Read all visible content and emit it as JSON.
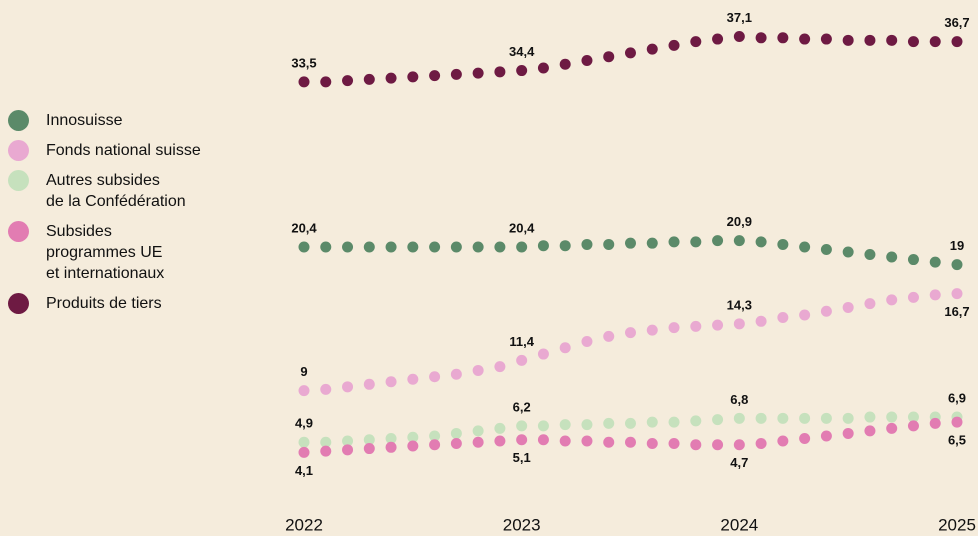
{
  "chart_data": {
    "type": "dot-line",
    "x": [
      2022,
      2022.1,
      2022.2,
      2022.3,
      2022.4,
      2022.5,
      2022.6,
      2022.7,
      2022.8,
      2022.9,
      2023,
      2023.1,
      2023.2,
      2023.3,
      2023.4,
      2023.5,
      2023.6,
      2023.7,
      2023.8,
      2023.9,
      2024,
      2024.1,
      2024.2,
      2024.3,
      2024.4,
      2024.5,
      2024.6,
      2024.7,
      2024.8,
      2024.9,
      2025
    ],
    "xlim": [
      2022,
      2025
    ],
    "xticks": [
      2022,
      2023,
      2024,
      2025
    ],
    "ylim": [
      0,
      40
    ],
    "series": [
      {
        "name": "Innosuisse",
        "color": "#5b8a69",
        "values": [
          20.4,
          20.4,
          20.4,
          20.4,
          20.4,
          20.4,
          20.4,
          20.4,
          20.4,
          20.4,
          20.4,
          20.5,
          20.5,
          20.6,
          20.6,
          20.7,
          20.7,
          20.8,
          20.8,
          20.9,
          20.9,
          20.8,
          20.6,
          20.4,
          20.2,
          20.0,
          19.8,
          19.6,
          19.4,
          19.2,
          19.0
        ],
        "value_labels": [
          "20,4",
          null,
          null,
          null,
          null,
          null,
          null,
          null,
          null,
          null,
          "20,4",
          null,
          null,
          null,
          null,
          null,
          null,
          null,
          null,
          null,
          "20,9",
          null,
          null,
          null,
          null,
          null,
          null,
          null,
          null,
          null,
          "19"
        ]
      },
      {
        "name": "Fonds national suisse",
        "color": "#e9a9d1",
        "values": [
          9.0,
          9.1,
          9.3,
          9.5,
          9.7,
          9.9,
          10.1,
          10.3,
          10.6,
          10.9,
          11.4,
          11.9,
          12.4,
          12.9,
          13.3,
          13.6,
          13.8,
          14.0,
          14.1,
          14.2,
          14.3,
          14.5,
          14.8,
          15.0,
          15.3,
          15.6,
          15.9,
          16.2,
          16.4,
          16.6,
          16.7
        ],
        "value_labels": [
          "9",
          null,
          null,
          null,
          null,
          null,
          null,
          null,
          null,
          null,
          "11,4",
          null,
          null,
          null,
          null,
          null,
          null,
          null,
          null,
          null,
          "14,3",
          null,
          null,
          null,
          null,
          null,
          null,
          null,
          null,
          null,
          "16,7"
        ]
      },
      {
        "name": "Autres subsides\nde la Confédération",
        "color": "#c6e1bd",
        "values": [
          4.9,
          4.9,
          5.0,
          5.1,
          5.2,
          5.3,
          5.4,
          5.6,
          5.8,
          6.0,
          6.2,
          6.2,
          6.3,
          6.3,
          6.4,
          6.4,
          6.5,
          6.5,
          6.6,
          6.7,
          6.8,
          6.8,
          6.8,
          6.8,
          6.8,
          6.8,
          6.9,
          6.9,
          6.9,
          6.9,
          6.9
        ],
        "value_labels": [
          "4,9",
          null,
          null,
          null,
          null,
          null,
          null,
          null,
          null,
          null,
          "6,2",
          null,
          null,
          null,
          null,
          null,
          null,
          null,
          null,
          null,
          "6,8",
          null,
          null,
          null,
          null,
          null,
          null,
          null,
          null,
          null,
          "6,9"
        ]
      },
      {
        "name": "Subsides\nprogrammes UE\net internationaux",
        "color": "#e27cb2",
        "values": [
          4.1,
          4.2,
          4.3,
          4.4,
          4.5,
          4.6,
          4.7,
          4.8,
          4.9,
          5.0,
          5.1,
          5.1,
          5.0,
          5.0,
          4.9,
          4.9,
          4.8,
          4.8,
          4.7,
          4.7,
          4.7,
          4.8,
          5.0,
          5.2,
          5.4,
          5.6,
          5.8,
          6.0,
          6.2,
          6.4,
          6.5
        ],
        "value_labels": [
          "4,1",
          null,
          null,
          null,
          null,
          null,
          null,
          null,
          null,
          null,
          "5,1",
          null,
          null,
          null,
          null,
          null,
          null,
          null,
          null,
          null,
          "4,7",
          null,
          null,
          null,
          null,
          null,
          null,
          null,
          null,
          null,
          "6,5"
        ]
      },
      {
        "name": "Produits de tiers",
        "color": "#6e1a43",
        "values": [
          33.5,
          33.5,
          33.6,
          33.7,
          33.8,
          33.9,
          34.0,
          34.1,
          34.2,
          34.3,
          34.4,
          34.6,
          34.9,
          35.2,
          35.5,
          35.8,
          36.1,
          36.4,
          36.7,
          36.9,
          37.1,
          37.0,
          37.0,
          36.9,
          36.9,
          36.8,
          36.8,
          36.8,
          36.7,
          36.7,
          36.7
        ],
        "value_labels": [
          "33,5",
          null,
          null,
          null,
          null,
          null,
          null,
          null,
          null,
          null,
          "34,4",
          null,
          null,
          null,
          null,
          null,
          null,
          null,
          null,
          null,
          "37,1",
          null,
          null,
          null,
          null,
          null,
          null,
          null,
          null,
          null,
          "36,7"
        ]
      }
    ]
  }
}
